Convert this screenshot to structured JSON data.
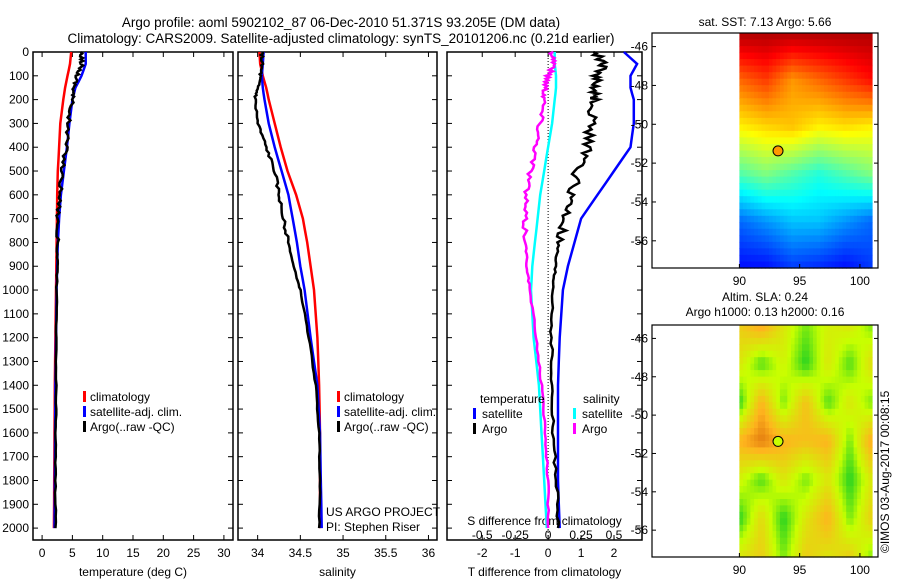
{
  "title_line1": "Argo profile: aoml 5902102_87 06-Dec-2010 51.371S 93.205E (DM data)",
  "title_line2": "Climatology: CARS2009. Satellite-adjusted climatology: synTS_20101206.nc (0.21d earlier)",
  "credit": "©IMOS 03-Aug-2017 00:08:15",
  "project_line1": "US ARGO PROJECT",
  "project_line2": "PI: Stephen Riser",
  "colors": {
    "climatology": "#ff0000",
    "satellite": "#0000ff",
    "argo": "#000000",
    "s_satellite": "#00ffff",
    "s_argo": "#ff00ff"
  },
  "chart_data": [
    {
      "type": "line",
      "xlabel": "temperature (deg C)",
      "xlim": [
        -1.5,
        31.5
      ],
      "xticks": [
        0,
        5,
        10,
        15,
        20,
        25,
        30
      ],
      "ylim": [
        0,
        2050
      ],
      "yticks": [
        0,
        100,
        200,
        300,
        400,
        500,
        600,
        700,
        800,
        900,
        1000,
        1100,
        1200,
        1300,
        1400,
        1500,
        1600,
        1700,
        1800,
        1900,
        2000
      ],
      "depth": [
        0,
        50,
        100,
        150,
        200,
        300,
        400,
        500,
        600,
        700,
        800,
        900,
        1000,
        1200,
        1400,
        1600,
        1800,
        2000
      ],
      "series": [
        {
          "name": "climatology",
          "color": "#ff0000",
          "values": [
            4.8,
            4.6,
            4.2,
            3.8,
            3.5,
            3.0,
            2.8,
            2.6,
            2.5,
            2.45,
            2.4,
            2.35,
            2.3,
            2.2,
            2.1,
            2.05,
            2.0,
            1.95
          ]
        },
        {
          "name": "satellite-adj. clim.",
          "color": "#0000ff",
          "values": [
            7.2,
            7.2,
            6.5,
            5.5,
            5.0,
            4.5,
            4.1,
            3.6,
            3.1,
            2.8,
            2.6,
            2.5,
            2.4,
            2.3,
            2.2,
            2.15,
            2.1,
            2.05
          ]
        },
        {
          "name": "Argo(..raw -QC)",
          "color": "#000000",
          "values": [
            6.3,
            6.6,
            5.8,
            5.3,
            5.0,
            4.3,
            4.0,
            3.3,
            3.0,
            2.6,
            2.5,
            2.5,
            2.4,
            2.3,
            2.3,
            2.25,
            2.2,
            2.2
          ]
        }
      ]
    },
    {
      "type": "line",
      "xlabel": "salinity",
      "xlim": [
        33.77,
        36.1
      ],
      "xticks": [
        34,
        34.5,
        35,
        35.5,
        36
      ],
      "ylim": [
        0,
        2050
      ],
      "depth": [
        0,
        50,
        100,
        150,
        200,
        300,
        400,
        500,
        600,
        700,
        800,
        900,
        1000,
        1200,
        1400,
        1600,
        1800,
        2000
      ],
      "series": [
        {
          "name": "climatology",
          "color": "#ff0000",
          "values": [
            34.02,
            34.03,
            34.06,
            34.1,
            34.13,
            34.2,
            34.27,
            34.35,
            34.45,
            34.53,
            34.58,
            34.62,
            34.66,
            34.7,
            34.72,
            34.73,
            34.73,
            34.73
          ]
        },
        {
          "name": "satellite-adj. clim.",
          "color": "#0000ff",
          "values": [
            34.07,
            34.06,
            34.05,
            34.06,
            34.08,
            34.13,
            34.2,
            34.28,
            34.36,
            34.41,
            34.46,
            34.5,
            34.55,
            34.62,
            34.7,
            34.73,
            34.74,
            34.75
          ]
        },
        {
          "name": "Argo(..raw -QC)",
          "color": "#000000",
          "values": [
            34.05,
            34.05,
            34.03,
            34.0,
            33.97,
            34.0,
            34.1,
            34.2,
            34.25,
            34.3,
            34.36,
            34.42,
            34.5,
            34.6,
            34.68,
            34.72,
            34.73,
            34.72
          ]
        }
      ]
    },
    {
      "type": "line",
      "xlabel": "T difference from climatology",
      "x2label": "S difference from climatology",
      "xlim": [
        -3.07,
        2.85
      ],
      "xticks": [
        -2,
        -1,
        0,
        1,
        2
      ],
      "x2ticks": [
        -0.5,
        -0.25,
        0,
        0.25,
        0.5
      ],
      "x2ticklabels": [
        "-0.5",
        "-0.25",
        "0",
        "0.25",
        "0.5"
      ],
      "ylim": [
        0,
        2050
      ],
      "legend_temperature": "temperature",
      "legend_salinity": "salinity",
      "depth": [
        0,
        50,
        100,
        150,
        200,
        300,
        400,
        500,
        600,
        700,
        800,
        900,
        1000,
        1200,
        1400,
        1600,
        1800,
        2000
      ],
      "series": [
        {
          "name": "satellite",
          "group": "temperature",
          "axis": "T",
          "color": "#0000ff",
          "values": [
            2.3,
            2.7,
            2.5,
            2.5,
            2.6,
            2.6,
            2.5,
            2.0,
            1.5,
            1.0,
            0.8,
            0.6,
            0.45,
            0.35,
            0.3,
            0.3,
            0.3,
            0.35
          ]
        },
        {
          "name": "Argo",
          "group": "temperature",
          "axis": "T",
          "color": "#000000",
          "values": [
            1.4,
            1.7,
            1.5,
            1.4,
            1.4,
            1.3,
            1.2,
            0.9,
            0.7,
            0.5,
            0.3,
            0.2,
            0.15,
            0.1,
            0.1,
            0.15,
            0.25,
            0.3
          ]
        },
        {
          "name": "satellite",
          "group": "salinity",
          "axis": "S",
          "color": "#00ffff",
          "values": [
            0.05,
            0.05,
            0.06,
            0.06,
            0.05,
            0.03,
            0.0,
            -0.03,
            -0.06,
            -0.08,
            -0.1,
            -0.12,
            -0.13,
            -0.11,
            -0.07,
            -0.05,
            -0.03,
            -0.01
          ]
        },
        {
          "name": "Argo",
          "group": "salinity",
          "axis": "S",
          "color": "#ff00ff",
          "values": [
            0.03,
            0.05,
            0.0,
            -0.02,
            -0.03,
            -0.06,
            -0.09,
            -0.13,
            -0.17,
            -0.18,
            -0.17,
            -0.16,
            -0.14,
            -0.09,
            -0.05,
            -0.02,
            0.0,
            0.0
          ]
        }
      ]
    },
    {
      "type": "heatmap",
      "title": "sat. SST: 7.13 Argo: 5.66",
      "xlim": [
        82.75,
        101.5
      ],
      "xticks": [
        90,
        95,
        100
      ],
      "ylim": [
        -57.4,
        -45.3
      ],
      "yticks": [
        -46,
        -48,
        -50,
        -52,
        -54,
        -56
      ],
      "data_lon": [
        90,
        101
      ],
      "lat_rows": [
        -45,
        -47.5,
        -50,
        -52.5,
        -55,
        -57.5
      ],
      "crange": [
        1,
        12
      ],
      "grid": [
        [
          11.5,
          11.5,
          11.5,
          11.5,
          11.5,
          11.5
        ],
        [
          9.5,
          10,
          9,
          9.5,
          10,
          10.5
        ],
        [
          8,
          8.3,
          8.5,
          8,
          8.2,
          8
        ],
        [
          6,
          6.5,
          6,
          5.5,
          6,
          6.5
        ],
        [
          3.5,
          4,
          4.5,
          4.5,
          4,
          3.5
        ],
        [
          2.5,
          2.5,
          3,
          2.8,
          2.5,
          3
        ]
      ],
      "marker": {
        "lon": 93.205,
        "lat": -51.371
      }
    },
    {
      "type": "heatmap",
      "title": "Altim. SLA: 0.24",
      "subtitle": "Argo h1000: 0.13 h2000: 0.16",
      "xlim": [
        82.75,
        101.5
      ],
      "xticks": [
        90,
        95,
        100
      ],
      "ylim": [
        -57.4,
        -45.3
      ],
      "yticks": [
        -46,
        -48,
        -50,
        -52,
        -54,
        -56
      ],
      "data_lon": [
        90,
        101
      ],
      "lat_rows": [
        -45,
        -47,
        -49,
        -51,
        -53,
        -55,
        -57.5
      ],
      "crange": [
        -0.6,
        0.6
      ],
      "grid": [
        [
          0.2,
          0.35,
          0.1,
          -0.1,
          0.05,
          0.1,
          -0.1
        ],
        [
          0.1,
          -0.15,
          0.05,
          -0.2,
          0.1,
          -0.15,
          0.15
        ],
        [
          -0.2,
          0.3,
          -0.1,
          0.25,
          -0.15,
          0.1,
          -0.1
        ],
        [
          0.3,
          0.45,
          0.3,
          0.25,
          0.3,
          -0.1,
          0.35
        ],
        [
          0.05,
          -0.15,
          0.1,
          -0.1,
          0.1,
          -0.2,
          0.1
        ],
        [
          -0.2,
          0.15,
          -0.2,
          0.1,
          0.3,
          -0.1,
          0.2
        ],
        [
          0.1,
          0.2,
          -0.1,
          0.2,
          0.1,
          0.2,
          -0.1
        ]
      ],
      "marker": {
        "lon": 93.205,
        "lat": -51.371
      }
    }
  ]
}
